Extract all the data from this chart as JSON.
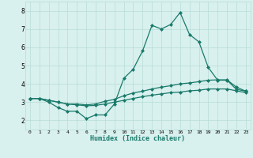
{
  "xlabel": "Humidex (Indice chaleur)",
  "x": [
    0,
    1,
    2,
    3,
    4,
    5,
    6,
    7,
    8,
    9,
    10,
    11,
    12,
    13,
    14,
    15,
    16,
    17,
    18,
    19,
    20,
    21,
    22,
    23
  ],
  "line_top": [
    3.2,
    3.2,
    3.0,
    2.7,
    2.5,
    2.5,
    2.1,
    2.3,
    2.3,
    2.9,
    4.3,
    4.8,
    5.8,
    7.2,
    7.0,
    7.25,
    7.9,
    6.7,
    6.3,
    4.9,
    4.2,
    4.2,
    3.7,
    3.6
  ],
  "line_mid": [
    3.2,
    3.2,
    3.1,
    3.0,
    2.9,
    2.9,
    2.85,
    2.9,
    3.05,
    3.15,
    3.35,
    3.5,
    3.6,
    3.72,
    3.82,
    3.9,
    4.0,
    4.05,
    4.12,
    4.2,
    4.22,
    4.22,
    3.82,
    3.6
  ],
  "line_bot": [
    3.2,
    3.2,
    3.1,
    3.0,
    2.9,
    2.85,
    2.8,
    2.82,
    2.9,
    3.0,
    3.1,
    3.2,
    3.3,
    3.38,
    3.45,
    3.52,
    3.55,
    3.62,
    3.65,
    3.72,
    3.72,
    3.72,
    3.62,
    3.52
  ],
  "line_color": "#1a7a6a",
  "bg_color": "#d8f0ee",
  "grid_color": "#b8dcd8",
  "ylim": [
    1.5,
    8.5
  ],
  "xlim": [
    -0.5,
    23.5
  ],
  "yticks": [
    2,
    3,
    4,
    5,
    6,
    7,
    8
  ],
  "xticks": [
    0,
    1,
    2,
    3,
    4,
    5,
    6,
    7,
    8,
    9,
    10,
    11,
    12,
    13,
    14,
    15,
    16,
    17,
    18,
    19,
    20,
    21,
    22,
    23
  ],
  "marker": "D",
  "markersize": 2.0,
  "linewidth": 0.9
}
